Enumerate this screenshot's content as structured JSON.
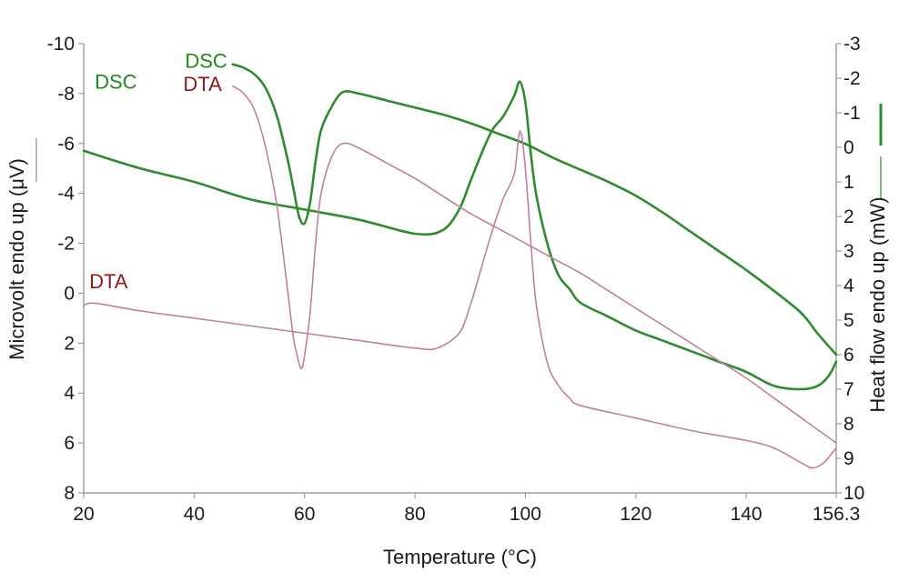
{
  "chart_data": {
    "type": "line",
    "xlabel": "Temperature (°C)",
    "ylabel_left": "Microvolt endo up (μV)",
    "ylabel_right": "Heat flow endo up (mW)",
    "xlim": [
      20,
      156.3
    ],
    "ylim_left": [
      -10,
      8
    ],
    "ylim_right": [
      -3,
      10
    ],
    "x_ticks": [
      20,
      40,
      60,
      80,
      100,
      120,
      140,
      156.3
    ],
    "x_tick_labels": [
      "20",
      "40",
      "60",
      "80",
      "100",
      "120",
      "140",
      "156.3"
    ],
    "y_left_ticks": [
      -10,
      -8,
      -6,
      -4,
      -2,
      0,
      2,
      4,
      6,
      8
    ],
    "y_left_tick_labels": [
      "-10",
      "-8",
      "-6",
      "-4",
      "-2",
      "0",
      "2",
      "4",
      "6",
      "8"
    ],
    "y_right_ticks": [
      -3,
      -2,
      -1,
      0,
      1,
      2,
      3,
      4,
      5,
      6,
      7,
      8,
      9,
      10
    ],
    "y_right_tick_labels": [
      "-3",
      "-2",
      "-1",
      "0",
      "1",
      "2",
      "3",
      "4",
      "5",
      "6",
      "7",
      "8",
      "9",
      "10"
    ],
    "series": [
      {
        "name": "DSC",
        "axis": "right",
        "color": "#2e8b2e",
        "label_color": "#1f8a1f",
        "label_anchor": [
          22,
          -1.7
        ],
        "x": [
          20,
          30,
          40,
          50,
          60,
          70,
          80,
          85,
          88,
          90,
          92,
          94,
          96,
          98,
          99,
          100,
          101,
          102,
          104,
          106,
          108,
          110,
          115,
          120,
          125,
          130,
          135,
          140,
          145,
          150,
          153,
          155,
          156.3
        ],
        "y": [
          0.1,
          0.6,
          1.0,
          1.5,
          1.8,
          2.1,
          2.5,
          2.4,
          1.8,
          1.0,
          0.2,
          -0.5,
          -0.9,
          -1.5,
          -1.9,
          -1.3,
          0.2,
          1.4,
          2.8,
          3.7,
          4.1,
          4.5,
          4.9,
          5.3,
          5.6,
          5.9,
          6.2,
          6.5,
          6.9,
          7.0,
          6.9,
          6.6,
          6.2
        ]
      },
      {
        "name": "DSC",
        "axis": "right",
        "color": "#2e8b2e",
        "label_color": "#1f8a1f",
        "label_anchor": [
          47,
          -2.3
        ],
        "x": [
          47,
          49,
          51,
          53,
          55,
          57,
          58,
          59,
          60,
          61,
          62,
          63,
          65,
          67,
          70,
          75,
          80,
          85,
          90,
          95,
          100,
          105,
          110,
          115,
          120,
          125,
          130,
          135,
          140,
          145,
          150,
          153,
          156.3
        ],
        "y": [
          -2.4,
          -2.3,
          -2.1,
          -1.7,
          -0.9,
          0.4,
          1.2,
          2.0,
          2.2,
          1.6,
          0.4,
          -0.5,
          -1.2,
          -1.6,
          -1.55,
          -1.35,
          -1.15,
          -0.95,
          -0.7,
          -0.4,
          -0.1,
          0.3,
          0.65,
          1.0,
          1.4,
          1.9,
          2.45,
          3.0,
          3.55,
          4.15,
          4.8,
          5.4,
          6.0
        ]
      },
      {
        "name": "DTA",
        "axis": "left",
        "color": "#c07f9f",
        "label_color": "#8b1a1a",
        "label_anchor": [
          21,
          -0.2
        ],
        "x": [
          20,
          22,
          30,
          40,
          50,
          60,
          70,
          80,
          84,
          88,
          90,
          92,
          94,
          96,
          98,
          99,
          100,
          101,
          102,
          104,
          106,
          108,
          110,
          120,
          130,
          140,
          145,
          150,
          152,
          154,
          156.3
        ],
        "y": [
          0.5,
          0.4,
          0.7,
          1.0,
          1.3,
          1.6,
          1.9,
          2.2,
          2.2,
          1.6,
          0.5,
          -1.0,
          -2.5,
          -3.8,
          -4.8,
          -6.5,
          -5.0,
          -2.0,
          0.5,
          2.8,
          3.7,
          4.2,
          4.5,
          5.0,
          5.5,
          5.9,
          6.2,
          6.8,
          7.0,
          6.8,
          6.2
        ]
      },
      {
        "name": "DTA",
        "axis": "left",
        "color": "#c07f9f",
        "label_color": "#8b1a1a",
        "label_anchor": [
          46,
          -8.1
        ],
        "x": [
          47,
          49,
          51,
          53,
          55,
          57,
          58,
          59,
          59.5,
          60,
          61,
          62,
          63,
          65,
          67,
          70,
          75,
          80,
          85,
          90,
          95,
          100,
          105,
          110,
          115,
          120,
          125,
          130,
          135,
          140,
          145,
          150,
          156.3
        ],
        "y": [
          -8.3,
          -8.0,
          -7.3,
          -5.8,
          -3.5,
          0.0,
          1.8,
          2.8,
          3.0,
          2.5,
          0.8,
          -2.0,
          -4.0,
          -5.5,
          -6.0,
          -5.8,
          -5.2,
          -4.6,
          -3.9,
          -3.2,
          -2.6,
          -2.0,
          -1.4,
          -0.8,
          -0.1,
          0.6,
          1.3,
          2.0,
          2.7,
          3.4,
          4.2,
          5.0,
          6.0
        ]
      }
    ]
  }
}
